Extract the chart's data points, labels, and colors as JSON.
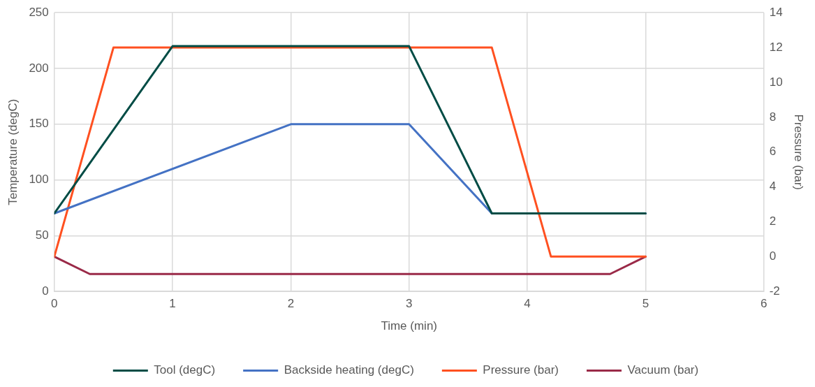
{
  "chart_data": {
    "type": "line",
    "xlabel": "Time (min)",
    "ylabel": "Temperature (degC)",
    "y2label": "Pressure (bar)",
    "xlim": [
      0,
      6
    ],
    "xticks": [
      0,
      1,
      2,
      3,
      4,
      5,
      6
    ],
    "ylim": [
      0,
      250
    ],
    "yticks": [
      0,
      50,
      100,
      150,
      200,
      250
    ],
    "y2lim": [
      -2,
      14
    ],
    "y2ticks": [
      -2,
      0,
      2,
      4,
      6,
      8,
      10,
      12,
      14
    ],
    "grid": true,
    "legend": "bottom",
    "marker": "none",
    "line_style": "solid",
    "series": [
      {
        "name": "Tool (degC)",
        "color": "#004c45",
        "x": [
          0,
          1,
          3,
          3.7,
          5
        ],
        "values": [
          70,
          220,
          220,
          70,
          70
        ]
      },
      {
        "name": "Backside heating (degC)",
        "color": "#4472c4",
        "x": [
          0,
          2,
          3,
          3.7,
          5
        ],
        "values": [
          70,
          150,
          150,
          70,
          70
        ]
      },
      {
        "name": "Pressure (bar)",
        "color": "#ff5020",
        "axis": "y2",
        "x": [
          0,
          0.5,
          3.7,
          4.2,
          5
        ],
        "values": [
          0,
          12,
          12,
          0,
          0
        ]
      },
      {
        "name": "Vacuum (bar)",
        "color": "#9a2a48",
        "axis": "y2",
        "x": [
          0,
          0.3,
          4.7,
          5
        ],
        "values": [
          0,
          -1,
          -1,
          0
        ]
      }
    ]
  }
}
